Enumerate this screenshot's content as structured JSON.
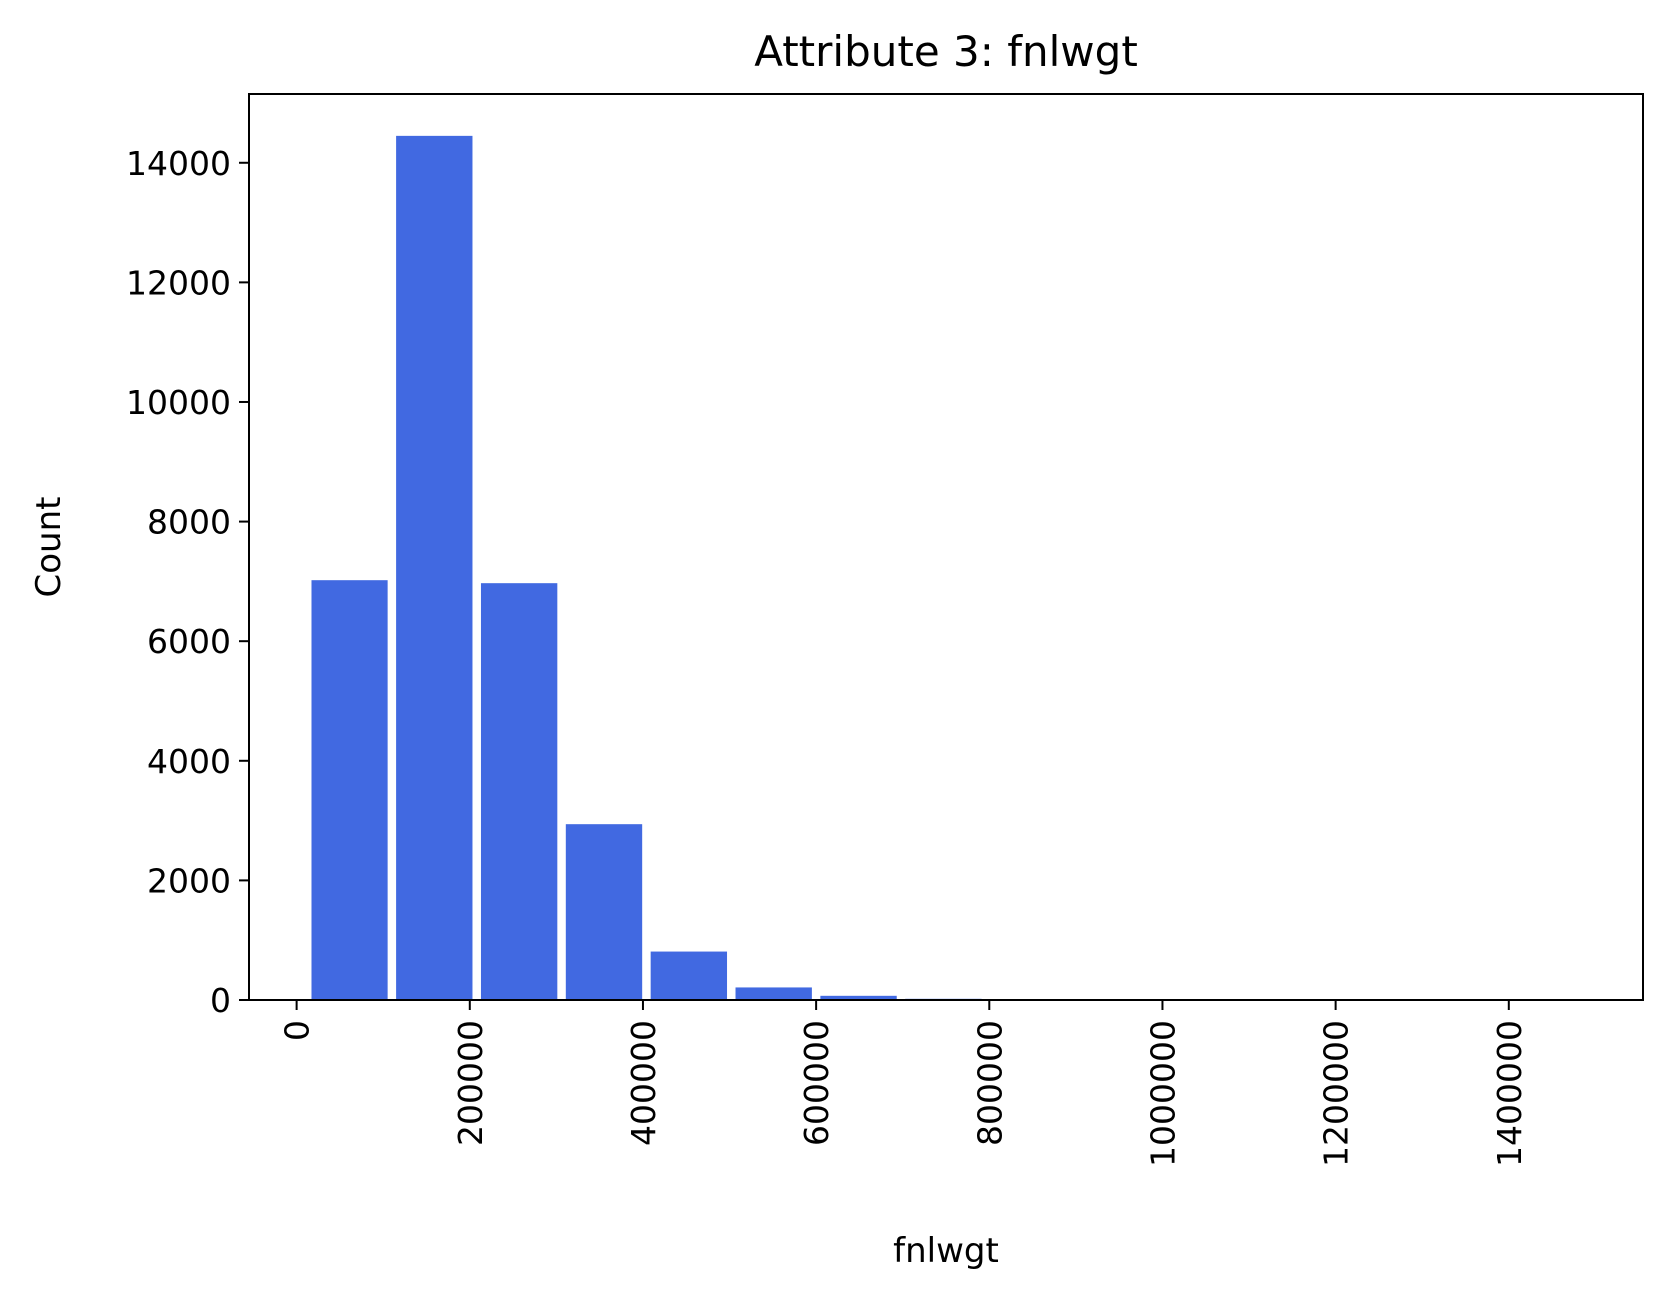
{
  "chart_data": {
    "type": "bar",
    "title": "Attribute 3: fnlwgt",
    "xlabel": "fnlwgt",
    "ylabel": "Count",
    "bar_color": "#4169e1",
    "xlim": [
      -55000,
      1555000
    ],
    "ylim": [
      0,
      15150
    ],
    "x_ticks": [
      0,
      200000,
      400000,
      600000,
      800000,
      1000000,
      1200000,
      1400000
    ],
    "x_tick_labels": [
      "0",
      "200000",
      "400000",
      "600000",
      "800000",
      "1000000",
      "1200000",
      "1400000"
    ],
    "y_ticks": [
      0,
      2000,
      4000,
      6000,
      8000,
      10000,
      12000,
      14000
    ],
    "y_tick_labels": [
      "0",
      "2000",
      "4000",
      "6000",
      "8000",
      "10000",
      "12000",
      "14000"
    ],
    "bins": [
      {
        "start": 12285,
        "end": 110000,
        "count": 7020
      },
      {
        "start": 110000,
        "end": 208000,
        "count": 14450
      },
      {
        "start": 208000,
        "end": 306000,
        "count": 6970
      },
      {
        "start": 306000,
        "end": 404000,
        "count": 2940
      },
      {
        "start": 404000,
        "end": 502000,
        "count": 810
      },
      {
        "start": 502000,
        "end": 600000,
        "count": 210
      },
      {
        "start": 600000,
        "end": 698000,
        "count": 70
      },
      {
        "start": 698000,
        "end": 796000,
        "count": 20
      },
      {
        "start": 796000,
        "end": 894000,
        "count": 8
      },
      {
        "start": 894000,
        "end": 992000,
        "count": 4
      },
      {
        "start": 992000,
        "end": 1090000,
        "count": 3
      },
      {
        "start": 1090000,
        "end": 1188000,
        "count": 2
      },
      {
        "start": 1188000,
        "end": 1286000,
        "count": 1
      },
      {
        "start": 1286000,
        "end": 1384000,
        "count": 1
      },
      {
        "start": 1384000,
        "end": 1484705,
        "count": 1
      }
    ],
    "rwidth": 0.9,
    "grid": false,
    "legend": false
  }
}
